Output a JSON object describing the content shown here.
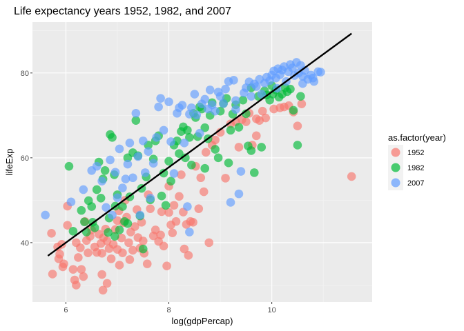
{
  "chart_data": {
    "type": "scatter",
    "title": "Life expectancy years 1952, 1982, and 2007",
    "xlabel": "log(gdpPercap)",
    "ylabel": "lifeExp",
    "xlim": [
      5.35,
      11.95
    ],
    "ylim": [
      26.0,
      92.0
    ],
    "xticks": [
      6,
      8,
      10
    ],
    "yticks": [
      40,
      60,
      80
    ],
    "xtick_labels": [
      "6",
      "8",
      "10"
    ],
    "ytick_labels": [
      "40",
      "60",
      "80"
    ],
    "grid": true,
    "legend_position": "right",
    "legend": {
      "title": "as.factor(year)",
      "entries": [
        {
          "label": "1952",
          "color": "#F8766D"
        },
        {
          "label": "1982",
          "color": "#00BA38"
        },
        {
          "label": "2007",
          "color": "#619CFF"
        }
      ]
    },
    "colors": {
      "panel_background": "#EBEBEB",
      "grid_major": "#FFFFFF",
      "trend_line": "#000000"
    },
    "trend_line": {
      "x": [
        5.65,
        11.55
      ],
      "y": [
        36.9,
        89.3
      ]
    },
    "series": [
      {
        "name": "1952",
        "color": "#F8766D",
        "points": [
          [
            5.72,
            42.2
          ],
          [
            5.74,
            32.6
          ],
          [
            5.84,
            39.0
          ],
          [
            5.86,
            36.2
          ],
          [
            5.88,
            37.3
          ],
          [
            5.92,
            39.6
          ],
          [
            5.94,
            34.3
          ],
          [
            5.96,
            35.0
          ],
          [
            6.03,
            48.6
          ],
          [
            6.03,
            44.1
          ],
          [
            6.14,
            33.7
          ],
          [
            6.17,
            31.2
          ],
          [
            6.2,
            30.0
          ],
          [
            6.2,
            40.0
          ],
          [
            6.24,
            36.5
          ],
          [
            6.28,
            38.8
          ],
          [
            6.3,
            33.7
          ],
          [
            6.34,
            32.0
          ],
          [
            6.37,
            45.0
          ],
          [
            6.4,
            40.5
          ],
          [
            6.43,
            37.6
          ],
          [
            6.47,
            41.5
          ],
          [
            6.5,
            43.0
          ],
          [
            6.56,
            39.0
          ],
          [
            6.6,
            37.7
          ],
          [
            6.64,
            42.0
          ],
          [
            6.68,
            39.8
          ],
          [
            6.7,
            37.5
          ],
          [
            6.73,
            41.2
          ],
          [
            6.77,
            43.2
          ],
          [
            6.8,
            40.4
          ],
          [
            6.84,
            38.6
          ],
          [
            6.7,
            32.5
          ],
          [
            6.72,
            28.8
          ],
          [
            6.8,
            30.4
          ],
          [
            6.88,
            36.2
          ],
          [
            6.92,
            39.6
          ],
          [
            6.96,
            43.1
          ],
          [
            7.0,
            38.4
          ],
          [
            7.03,
            47.5
          ],
          [
            7.04,
            34.7
          ],
          [
            7.08,
            41.1
          ],
          [
            7.1,
            37.6
          ],
          [
            7.12,
            44.7
          ],
          [
            7.15,
            50.0
          ],
          [
            7.18,
            46.0
          ],
          [
            7.22,
            40.0
          ],
          [
            7.24,
            36.0
          ],
          [
            7.26,
            42.5
          ],
          [
            7.3,
            38.2
          ],
          [
            7.34,
            43.8
          ],
          [
            7.38,
            47.8
          ],
          [
            7.4,
            41.2
          ],
          [
            7.44,
            38.7
          ],
          [
            7.47,
            44.8
          ],
          [
            7.5,
            40.4
          ],
          [
            7.52,
            37.5
          ],
          [
            7.58,
            35.0
          ],
          [
            7.6,
            51.3
          ],
          [
            7.64,
            48.0
          ],
          [
            7.7,
            41.6
          ],
          [
            7.74,
            43.0
          ],
          [
            7.8,
            40.3
          ],
          [
            7.84,
            41.8
          ],
          [
            7.86,
            47.3
          ],
          [
            7.9,
            39.2
          ],
          [
            7.96,
            34.5
          ],
          [
            8.0,
            53.3
          ],
          [
            8.04,
            44.2
          ],
          [
            8.07,
            42.3
          ],
          [
            8.1,
            48.8
          ],
          [
            8.14,
            45.0
          ],
          [
            8.2,
            50.9
          ],
          [
            8.24,
            56.0
          ],
          [
            8.28,
            47.2
          ],
          [
            8.34,
            44.3
          ],
          [
            8.38,
            37.0
          ],
          [
            8.42,
            45.0
          ],
          [
            8.47,
            44.8
          ],
          [
            8.52,
            58.0
          ],
          [
            8.58,
            48.0
          ],
          [
            8.62,
            55.3
          ],
          [
            8.68,
            52.0
          ],
          [
            8.72,
            61.3
          ],
          [
            8.78,
            40.0
          ],
          [
            8.84,
            63.0
          ],
          [
            8.9,
            64.2
          ],
          [
            9.0,
            66.0
          ],
          [
            9.1,
            55.2
          ],
          [
            9.2,
            68.0
          ],
          [
            9.3,
            68.5
          ],
          [
            9.36,
            62.5
          ],
          [
            9.42,
            69.0
          ],
          [
            9.5,
            68.5
          ],
          [
            9.56,
            70.5
          ],
          [
            9.62,
            63.0
          ],
          [
            9.7,
            69.2
          ],
          [
            9.76,
            68.8
          ],
          [
            9.82,
            71.0
          ],
          [
            9.88,
            69.4
          ],
          [
            10.04,
            71.5
          ],
          [
            10.16,
            71.8
          ],
          [
            10.24,
            72.0
          ],
          [
            10.33,
            72.3
          ],
          [
            10.42,
            70.8
          ],
          [
            10.5,
            67.5
          ],
          [
            10.58,
            72.7
          ],
          [
            11.55,
            55.6
          ],
          [
            8.3,
            38.5
          ],
          [
            7.0,
            45.2
          ],
          [
            8.0,
            47.1
          ],
          [
            9.7,
            65.2
          ]
        ]
      },
      {
        "name": "1982",
        "color": "#00BA38",
        "points": [
          [
            6.06,
            58.0
          ],
          [
            6.14,
            42.7
          ],
          [
            6.3,
            47.6
          ],
          [
            6.36,
            44.9
          ],
          [
            6.4,
            42.5
          ],
          [
            6.44,
            49.9
          ],
          [
            6.5,
            48.5
          ],
          [
            6.52,
            44.8
          ],
          [
            6.56,
            43.5
          ],
          [
            6.6,
            52.5
          ],
          [
            6.64,
            59.0
          ],
          [
            6.68,
            50.5
          ],
          [
            6.72,
            55.0
          ],
          [
            6.76,
            57.0
          ],
          [
            6.82,
            42.4
          ],
          [
            6.84,
            45.8
          ],
          [
            6.86,
            65.5
          ],
          [
            6.9,
            64.8
          ],
          [
            6.94,
            56.0
          ],
          [
            6.96,
            48.6
          ],
          [
            7.0,
            51.3
          ],
          [
            7.04,
            43.0
          ],
          [
            7.1,
            48.5
          ],
          [
            7.14,
            45.0
          ],
          [
            7.2,
            60.0
          ],
          [
            7.24,
            50.8
          ],
          [
            7.3,
            61.2
          ],
          [
            7.36,
            68.8
          ],
          [
            7.4,
            60.5
          ],
          [
            7.44,
            46.3
          ],
          [
            7.47,
            52.8
          ],
          [
            7.5,
            38.5
          ],
          [
            7.56,
            55.5
          ],
          [
            7.6,
            63.0
          ],
          [
            7.64,
            50.1
          ],
          [
            7.7,
            59.7
          ],
          [
            7.74,
            64.0
          ],
          [
            7.8,
            65.2
          ],
          [
            7.86,
            51.0
          ],
          [
            7.9,
            56.4
          ],
          [
            7.94,
            48.8
          ],
          [
            8.0,
            59.2
          ],
          [
            8.04,
            54.5
          ],
          [
            8.1,
            63.0
          ],
          [
            8.16,
            64.0
          ],
          [
            8.2,
            61.0
          ],
          [
            8.24,
            66.2
          ],
          [
            8.28,
            67.3
          ],
          [
            8.32,
            60.0
          ],
          [
            8.36,
            66.5
          ],
          [
            8.4,
            64.8
          ],
          [
            8.44,
            58.3
          ],
          [
            8.48,
            70.5
          ],
          [
            8.52,
            69.5
          ],
          [
            8.56,
            65.0
          ],
          [
            8.6,
            72.0
          ],
          [
            8.64,
            71.5
          ],
          [
            8.7,
            67.1
          ],
          [
            8.76,
            64.5
          ],
          [
            8.8,
            70.0
          ],
          [
            8.84,
            73.0
          ],
          [
            8.9,
            62.0
          ],
          [
            8.96,
            60.0
          ],
          [
            9.0,
            71.0
          ],
          [
            9.06,
            72.8
          ],
          [
            9.12,
            74.0
          ],
          [
            9.16,
            58.8
          ],
          [
            9.24,
            70.3
          ],
          [
            9.3,
            72.5
          ],
          [
            9.36,
            67.2
          ],
          [
            9.44,
            73.6
          ],
          [
            9.5,
            70.4
          ],
          [
            9.54,
            62.8
          ],
          [
            9.6,
            61.7
          ],
          [
            9.66,
            56.5
          ],
          [
            9.74,
            74.5
          ],
          [
            9.8,
            62.5
          ],
          [
            9.86,
            75.8
          ],
          [
            9.9,
            74.8
          ],
          [
            9.96,
            73.6
          ],
          [
            10.02,
            75.0
          ],
          [
            10.08,
            76.0
          ],
          [
            10.14,
            74.3
          ],
          [
            10.2,
            75.0
          ],
          [
            10.26,
            76.5
          ],
          [
            10.3,
            75.6
          ],
          [
            10.36,
            76.2
          ],
          [
            10.42,
            71.2
          ],
          [
            10.5,
            63.0
          ],
          [
            10.56,
            74.5
          ],
          [
            10.0,
            77.0
          ],
          [
            9.6,
            76.5
          ],
          [
            9.2,
            66.5
          ],
          [
            8.7,
            57.5
          ],
          [
            7.2,
            44.5
          ],
          [
            6.95,
            41.5
          ]
        ]
      },
      {
        "name": "2007",
        "color": "#619CFF",
        "points": [
          [
            5.6,
            46.5
          ],
          [
            6.1,
            49.6
          ],
          [
            6.34,
            52.5
          ],
          [
            6.5,
            57.0
          ],
          [
            6.6,
            58.0
          ],
          [
            6.7,
            54.5
          ],
          [
            6.78,
            48.3
          ],
          [
            6.86,
            59.5
          ],
          [
            6.9,
            46.5
          ],
          [
            6.96,
            56.6
          ],
          [
            7.0,
            50.6
          ],
          [
            7.04,
            62.1
          ],
          [
            7.1,
            52.9
          ],
          [
            7.16,
            55.0
          ],
          [
            7.2,
            58.5
          ],
          [
            7.24,
            63.5
          ],
          [
            7.3,
            55.3
          ],
          [
            7.36,
            70.5
          ],
          [
            7.4,
            60.3
          ],
          [
            7.44,
            46.5
          ],
          [
            7.5,
            64.0
          ],
          [
            7.54,
            56.5
          ],
          [
            7.6,
            61.5
          ],
          [
            7.64,
            50.5
          ],
          [
            7.7,
            58.7
          ],
          [
            7.76,
            64.8
          ],
          [
            7.8,
            72.0
          ],
          [
            7.84,
            74.0
          ],
          [
            7.9,
            66.5
          ],
          [
            8.0,
            73.2
          ],
          [
            8.04,
            63.8
          ],
          [
            8.1,
            56.3
          ],
          [
            8.16,
            70.5
          ],
          [
            8.2,
            71.8
          ],
          [
            8.26,
            72.4
          ],
          [
            8.3,
            63.5
          ],
          [
            8.36,
            48.5
          ],
          [
            8.4,
            42.5
          ],
          [
            8.44,
            71.8
          ],
          [
            8.5,
            75.0
          ],
          [
            8.54,
            70.1
          ],
          [
            8.6,
            65.8
          ],
          [
            8.64,
            72.7
          ],
          [
            8.7,
            73.8
          ],
          [
            8.76,
            71.5
          ],
          [
            8.8,
            76.0
          ],
          [
            8.84,
            72.5
          ],
          [
            8.9,
            71.0
          ],
          [
            8.96,
            75.5
          ],
          [
            9.0,
            74.5
          ],
          [
            9.06,
            72.8
          ],
          [
            9.1,
            76.2
          ],
          [
            9.16,
            78.0
          ],
          [
            9.2,
            49.5
          ],
          [
            9.26,
            78.3
          ],
          [
            9.3,
            71.4
          ],
          [
            9.36,
            51.5
          ],
          [
            9.4,
            56.8
          ],
          [
            9.46,
            75.3
          ],
          [
            9.5,
            76.5
          ],
          [
            9.56,
            77.9
          ],
          [
            9.6,
            74.5
          ],
          [
            9.66,
            77.4
          ],
          [
            9.7,
            76.8
          ],
          [
            9.76,
            78.5
          ],
          [
            9.8,
            75.0
          ],
          [
            9.86,
            77.6
          ],
          [
            9.9,
            79.0
          ],
          [
            9.96,
            78.2
          ],
          [
            10.0,
            79.5
          ],
          [
            10.04,
            80.5
          ],
          [
            10.08,
            78.8
          ],
          [
            10.12,
            81.0
          ],
          [
            10.16,
            79.6
          ],
          [
            10.2,
            80.7
          ],
          [
            10.24,
            81.5
          ],
          [
            10.28,
            78.0
          ],
          [
            10.32,
            80.3
          ],
          [
            10.36,
            82.0
          ],
          [
            10.4,
            81.2
          ],
          [
            10.44,
            79.4
          ],
          [
            10.48,
            82.5
          ],
          [
            10.52,
            80.0
          ],
          [
            10.56,
            81.8
          ],
          [
            10.6,
            79.2
          ],
          [
            10.64,
            80.6
          ],
          [
            10.7,
            78.5
          ],
          [
            10.76,
            79.5
          ],
          [
            10.82,
            78.0
          ],
          [
            10.9,
            80.3
          ],
          [
            10.95,
            80.2
          ],
          [
            10.6,
            77.5
          ],
          [
            10.8,
            78.8
          ],
          [
            10.1,
            76.4
          ],
          [
            9.3,
            73.5
          ],
          [
            8.4,
            70.3
          ]
        ]
      }
    ]
  }
}
